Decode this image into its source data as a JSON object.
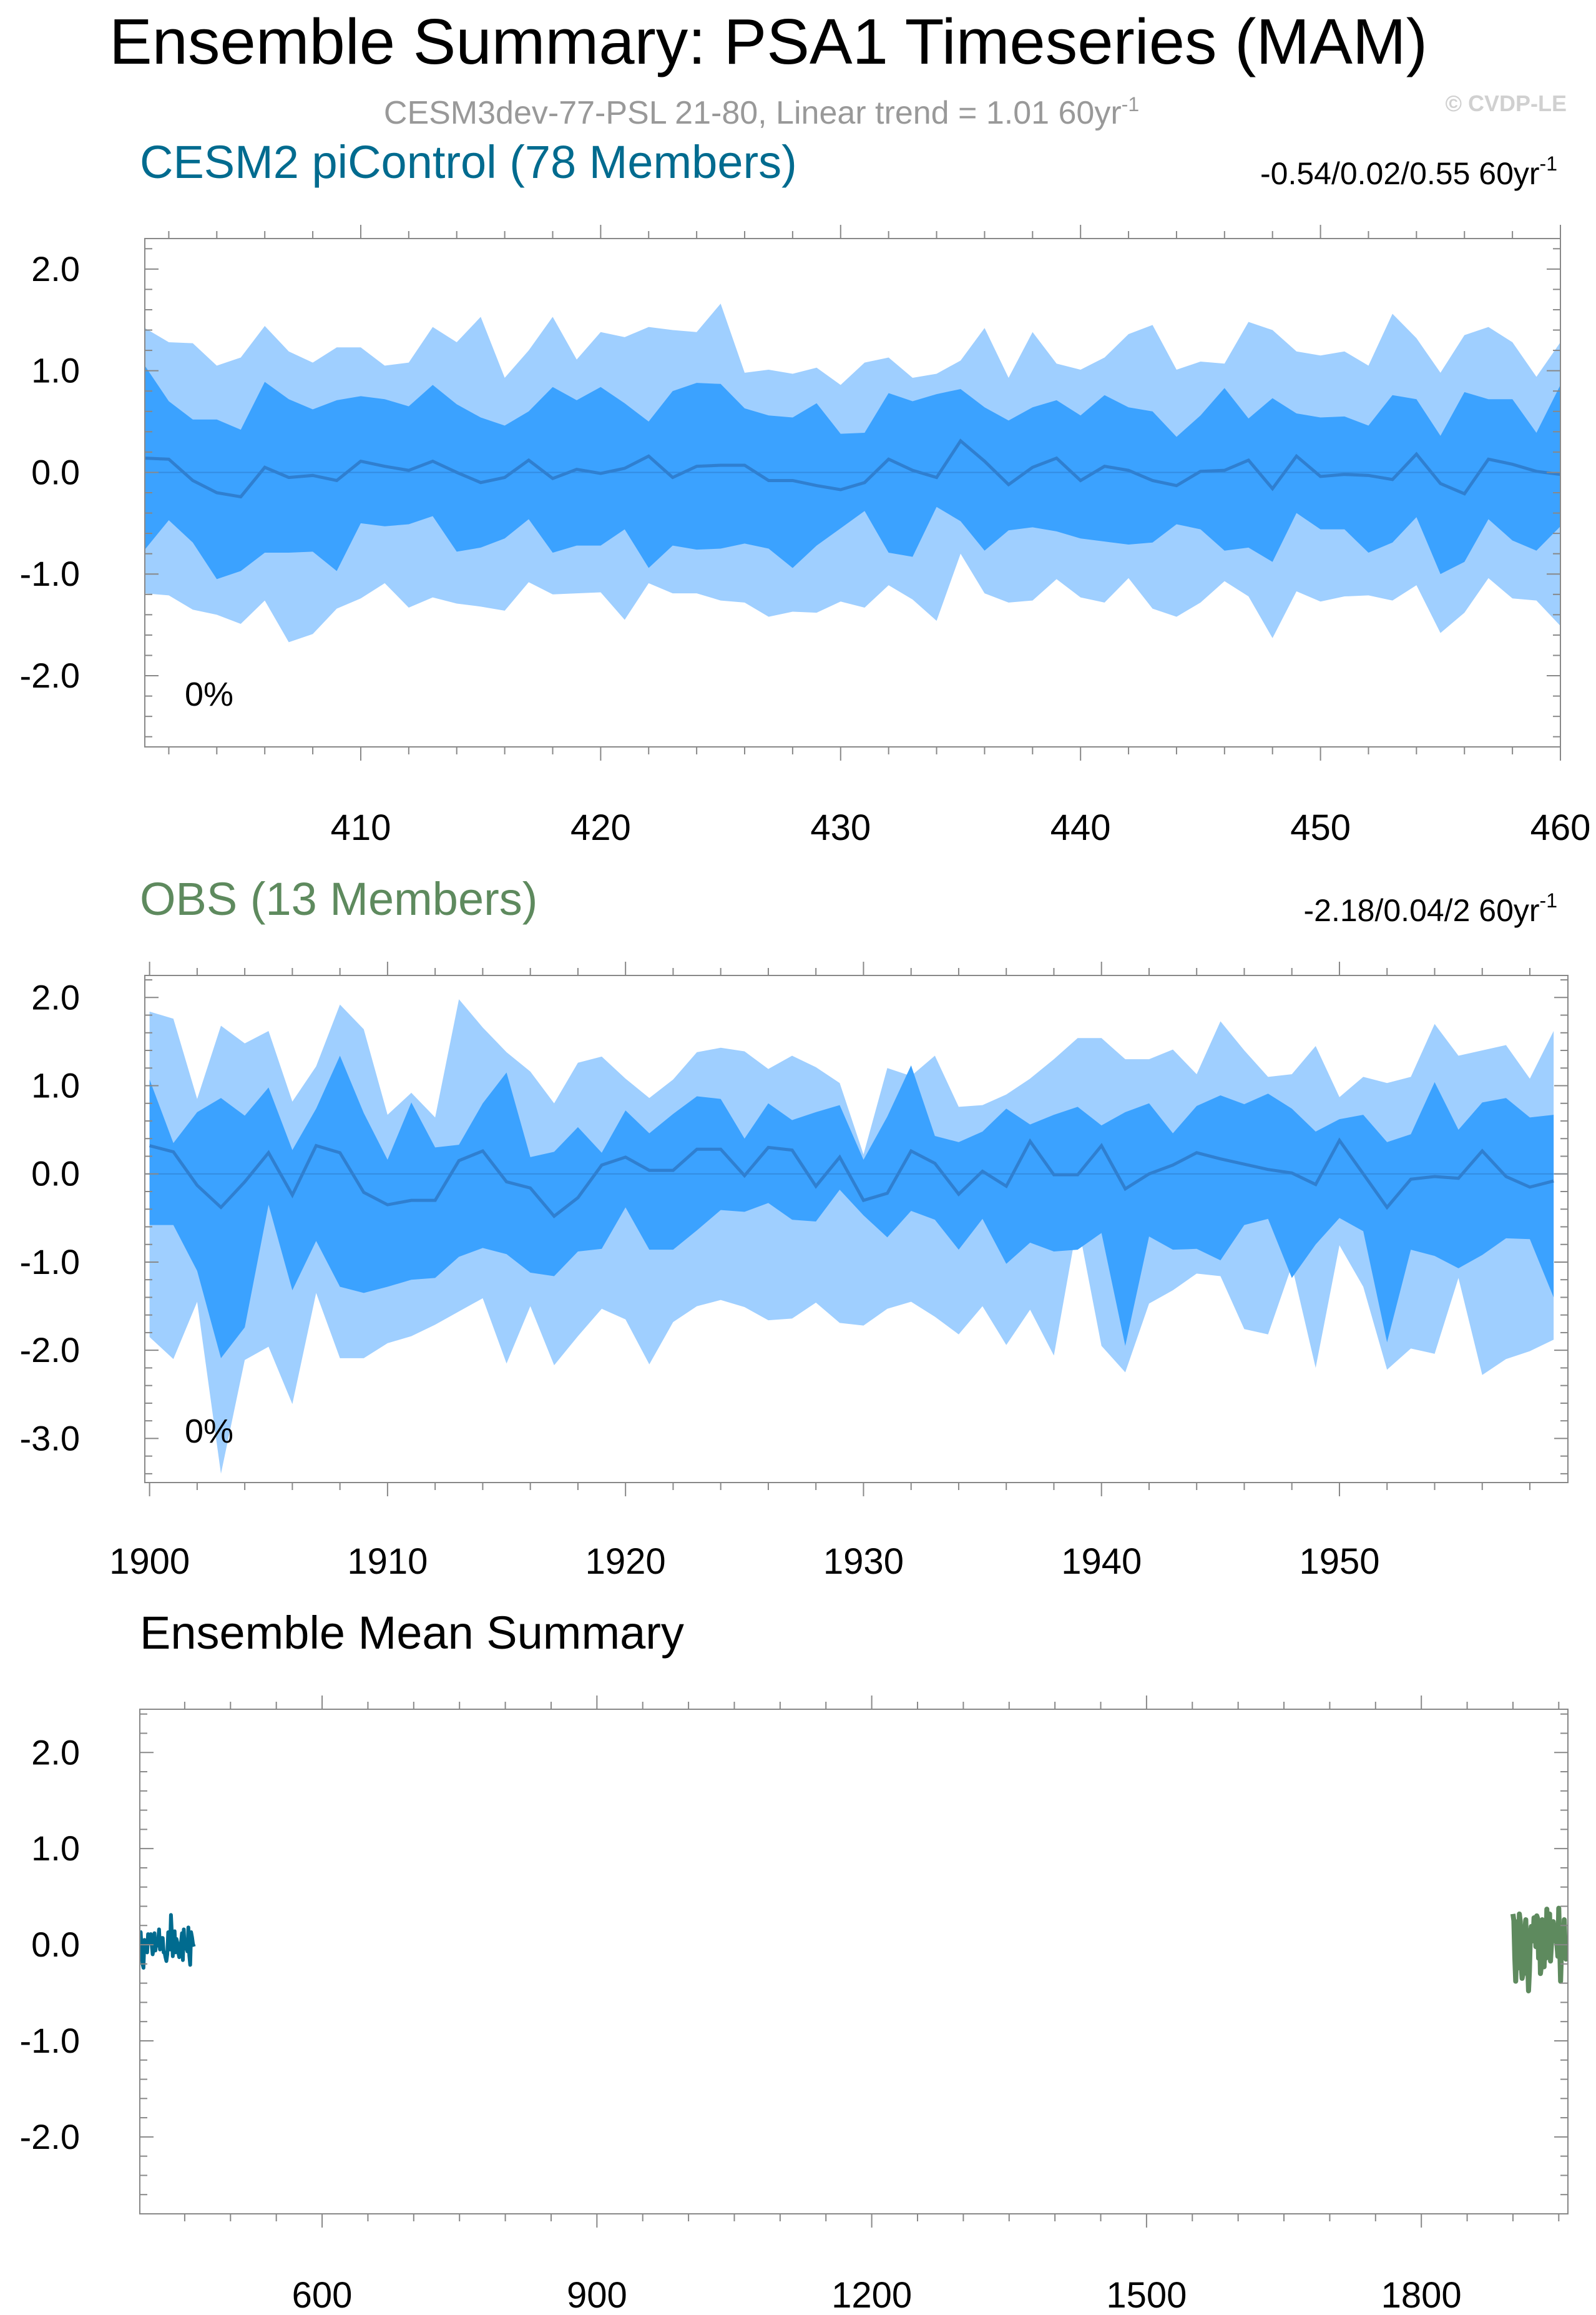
{
  "title": "Ensemble Summary: PSA1 Timeseries (MAM)",
  "subtitle": {
    "text": "CESM3dev-77-PSL 21-80, Linear trend = 1.01 60yr",
    "exp": "-1"
  },
  "watermark": "© CVDP-LE",
  "colors": {
    "outer_band": "#9fcfff",
    "inner_band": "#3ba2ff",
    "mean_line": "#2f7fd0",
    "cesm_title": "#006b8f",
    "obs_title": "#5e8a5e",
    "subtitle": "#999999",
    "watermark": "#d0d0d0"
  },
  "chart_data": [
    {
      "id": "cesm2",
      "type": "area",
      "title": "CESM2 piControl (78 Members)",
      "trend": {
        "text": "-0.54/0.02/0.55 60yr",
        "exp": "-1"
      },
      "pct_label": "0%",
      "xlim": [
        401,
        460
      ],
      "ylim": [
        -2.7,
        2.3
      ],
      "xticks": [
        410,
        420,
        430,
        440,
        450,
        460
      ],
      "xtick_labels": [
        "410",
        "420",
        "430",
        "440",
        "450",
        "460"
      ],
      "yticks": [
        2.0,
        1.0,
        0.0,
        -1.0,
        -2.0
      ],
      "ytick_labels": [
        "2.0",
        "1.0",
        "0.0",
        "-1.0",
        "-2.0"
      ],
      "x_start": 401,
      "max": [
        1.42,
        1.28,
        1.27,
        1.05,
        1.13,
        1.44,
        1.19,
        1.08,
        1.23,
        1.23,
        1.05,
        1.08,
        1.43,
        1.28,
        1.53,
        0.93,
        1.2,
        1.53,
        1.11,
        1.38,
        1.33,
        1.43,
        1.4,
        1.38,
        1.66,
        0.98,
        1.01,
        0.97,
        1.03,
        0.86,
        1.08,
        1.13,
        0.93,
        0.97,
        1.1,
        1.42,
        0.93,
        1.38,
        1.07,
        1.01,
        1.13,
        1.36,
        1.45,
        1.01,
        1.09,
        1.07,
        1.48,
        1.4,
        1.19,
        1.15,
        1.19,
        1.05,
        1.56,
        1.32,
        0.98,
        1.35,
        1.43,
        1.28,
        0.94,
        1.28
      ],
      "p84": [
        1.05,
        0.7,
        0.52,
        0.52,
        0.42,
        0.89,
        0.72,
        0.62,
        0.71,
        0.75,
        0.72,
        0.65,
        0.86,
        0.67,
        0.54,
        0.46,
        0.6,
        0.84,
        0.71,
        0.84,
        0.68,
        0.5,
        0.8,
        0.88,
        0.87,
        0.63,
        0.56,
        0.54,
        0.68,
        0.38,
        0.39,
        0.78,
        0.7,
        0.77,
        0.82,
        0.64,
        0.51,
        0.64,
        0.71,
        0.56,
        0.76,
        0.64,
        0.6,
        0.35,
        0.56,
        0.83,
        0.53,
        0.73,
        0.58,
        0.54,
        0.55,
        0.46,
        0.76,
        0.72,
        0.36,
        0.79,
        0.72,
        0.72,
        0.39,
        0.86
      ],
      "mean": [
        0.14,
        0.13,
        -0.08,
        -0.2,
        -0.24,
        0.05,
        -0.05,
        -0.03,
        -0.08,
        0.11,
        0.06,
        0.02,
        0.11,
        0.0,
        -0.1,
        -0.05,
        0.12,
        -0.06,
        0.03,
        -0.01,
        0.04,
        0.16,
        -0.05,
        0.06,
        0.07,
        0.07,
        -0.08,
        -0.08,
        -0.13,
        -0.17,
        -0.1,
        0.13,
        0.02,
        -0.05,
        0.31,
        0.11,
        -0.12,
        0.05,
        0.14,
        -0.08,
        0.06,
        0.02,
        -0.08,
        -0.13,
        0.01,
        0.02,
        0.12,
        -0.16,
        0.16,
        -0.04,
        -0.02,
        -0.03,
        -0.07,
        0.18,
        -0.11,
        -0.21,
        0.13,
        0.08,
        0.01,
        -0.02
      ],
      "p16": [
        -0.76,
        -0.47,
        -0.69,
        -1.05,
        -0.97,
        -0.79,
        -0.79,
        -0.78,
        -0.97,
        -0.5,
        -0.53,
        -0.51,
        -0.43,
        -0.78,
        -0.74,
        -0.65,
        -0.46,
        -0.79,
        -0.72,
        -0.72,
        -0.56,
        -0.94,
        -0.72,
        -0.76,
        -0.75,
        -0.7,
        -0.75,
        -0.94,
        -0.72,
        -0.55,
        -0.38,
        -0.79,
        -0.83,
        -0.34,
        -0.48,
        -0.77,
        -0.57,
        -0.54,
        -0.58,
        -0.65,
        -0.68,
        -0.71,
        -0.69,
        -0.51,
        -0.56,
        -0.77,
        -0.74,
        -0.88,
        -0.4,
        -0.56,
        -0.56,
        -0.79,
        -0.69,
        -0.44,
        -1.0,
        -0.88,
        -0.46,
        -0.67,
        -0.77,
        -0.53
      ],
      "min": [
        -1.19,
        -1.21,
        -1.35,
        -1.4,
        -1.49,
        -1.26,
        -1.67,
        -1.59,
        -1.34,
        -1.24,
        -1.09,
        -1.33,
        -1.23,
        -1.29,
        -1.32,
        -1.36,
        -1.08,
        -1.2,
        -1.19,
        -1.18,
        -1.45,
        -1.09,
        -1.19,
        -1.19,
        -1.26,
        -1.28,
        -1.42,
        -1.37,
        -1.38,
        -1.27,
        -1.33,
        -1.11,
        -1.25,
        -1.46,
        -0.8,
        -1.19,
        -1.28,
        -1.26,
        -1.05,
        -1.23,
        -1.28,
        -1.04,
        -1.34,
        -1.42,
        -1.28,
        -1.07,
        -1.22,
        -1.63,
        -1.17,
        -1.27,
        -1.22,
        -1.21,
        -1.26,
        -1.11,
        -1.58,
        -1.38,
        -1.04,
        -1.24,
        -1.26,
        -1.51
      ]
    },
    {
      "id": "obs",
      "type": "area",
      "title": "OBS (13 Members)",
      "trend": {
        "text": "-2.18/0.04/2 60yr",
        "exp": "-1"
      },
      "pct_label": "0%",
      "xlim": [
        1899.8,
        1959.6
      ],
      "ylim": [
        -3.5,
        2.25
      ],
      "xticks": [
        1900,
        1910,
        1920,
        1930,
        1940,
        1950
      ],
      "xtick_labels": [
        "1900",
        "1910",
        "1920",
        "1930",
        "1940",
        "1950"
      ],
      "yticks": [
        2.0,
        1.0,
        0.0,
        -1.0,
        -2.0,
        -3.0
      ],
      "ytick_labels": [
        "2.0",
        "1.0",
        "0.0",
        "-1.0",
        "-2.0",
        "-3.0"
      ],
      "x_start": 1900,
      "max": [
        1.84,
        1.76,
        0.85,
        1.68,
        1.48,
        1.62,
        0.82,
        1.22,
        1.92,
        1.64,
        0.67,
        0.92,
        0.64,
        1.98,
        1.66,
        1.38,
        1.16,
        0.8,
        1.26,
        1.33,
        1.08,
        0.86,
        1.07,
        1.38,
        1.43,
        1.39,
        1.19,
        1.34,
        1.21,
        1.03,
        0.22,
        1.2,
        1.11,
        1.34,
        0.76,
        0.78,
        0.9,
        1.08,
        1.3,
        1.54,
        1.54,
        1.3,
        1.3,
        1.41,
        1.13,
        1.73,
        1.4,
        1.1,
        1.13,
        1.45,
        0.87,
        1.1,
        1.03,
        1.1,
        1.7,
        1.34,
        1.4,
        1.46,
        1.08,
        1.62
      ],
      "p84": [
        1.07,
        0.35,
        0.7,
        0.86,
        0.66,
        0.98,
        0.27,
        0.74,
        1.34,
        0.69,
        0.16,
        0.81,
        0.3,
        0.33,
        0.8,
        1.15,
        0.19,
        0.25,
        0.53,
        0.24,
        0.72,
        0.46,
        0.68,
        0.88,
        0.85,
        0.4,
        0.8,
        0.61,
        0.7,
        0.78,
        0.16,
        0.65,
        1.23,
        0.43,
        0.36,
        0.48,
        0.74,
        0.56,
        0.67,
        0.76,
        0.55,
        0.7,
        0.8,
        0.46,
        0.77,
        0.89,
        0.79,
        0.91,
        0.74,
        0.48,
        0.62,
        0.67,
        0.36,
        0.45,
        1.04,
        0.5,
        0.81,
        0.86,
        0.64,
        0.67
      ],
      "mean": [
        0.32,
        0.25,
        -0.13,
        -0.38,
        -0.09,
        0.24,
        -0.24,
        0.32,
        0.24,
        -0.21,
        -0.35,
        -0.3,
        -0.3,
        0.15,
        0.26,
        -0.09,
        -0.16,
        -0.48,
        -0.27,
        0.1,
        0.19,
        0.04,
        0.04,
        0.28,
        0.28,
        -0.02,
        0.3,
        0.27,
        -0.14,
        0.19,
        -0.3,
        -0.22,
        0.26,
        0.12,
        -0.23,
        0.03,
        -0.14,
        0.37,
        -0.01,
        -0.01,
        0.32,
        -0.17,
        0.0,
        0.1,
        0.24,
        0.17,
        0.11,
        0.05,
        0.01,
        -0.12,
        0.38,
        0.0,
        -0.38,
        -0.06,
        -0.03,
        -0.05,
        0.26,
        -0.03,
        -0.15,
        -0.08
      ],
      "p16": [
        -0.58,
        -0.58,
        -1.1,
        -2.09,
        -1.74,
        -0.35,
        -1.32,
        -0.76,
        -1.28,
        -1.35,
        -1.28,
        -1.2,
        -1.18,
        -0.94,
        -0.84,
        -0.91,
        -1.12,
        -1.16,
        -0.88,
        -0.85,
        -0.38,
        -0.86,
        -0.86,
        -0.64,
        -0.41,
        -0.43,
        -0.33,
        -0.52,
        -0.54,
        -0.18,
        -0.47,
        -0.72,
        -0.42,
        -0.52,
        -0.86,
        -0.51,
        -1.02,
        -0.78,
        -0.88,
        -0.86,
        -0.67,
        -1.95,
        -0.71,
        -0.86,
        -0.85,
        -0.98,
        -0.58,
        -0.51,
        -1.18,
        -0.8,
        -0.5,
        -0.65,
        -1.91,
        -0.86,
        -0.93,
        -1.07,
        -0.92,
        -0.73,
        -0.74,
        -1.4
      ],
      "min": [
        -1.85,
        -2.1,
        -1.45,
        -3.4,
        -2.11,
        -1.96,
        -2.61,
        -1.35,
        -2.09,
        -2.09,
        -1.92,
        -1.84,
        -1.71,
        -1.56,
        -1.41,
        -2.15,
        -1.5,
        -2.17,
        -1.84,
        -1.53,
        -1.65,
        -2.16,
        -1.68,
        -1.5,
        -1.43,
        -1.51,
        -1.66,
        -1.64,
        -1.46,
        -1.69,
        -1.72,
        -1.53,
        -1.45,
        -1.62,
        -1.82,
        -1.5,
        -1.94,
        -1.54,
        -2.06,
        -0.55,
        -1.95,
        -2.25,
        -1.47,
        -1.32,
        -1.13,
        -1.16,
        -1.76,
        -1.82,
        -1.04,
        -2.2,
        -0.81,
        -1.28,
        -2.22,
        -1.98,
        -2.04,
        -1.18,
        -2.28,
        -2.1,
        -2.01,
        -1.88
      ]
    },
    {
      "id": "summary",
      "type": "line",
      "title": "Ensemble Mean Summary",
      "xlim": [
        401,
        1960
      ],
      "ylim": [
        -2.8,
        2.45
      ],
      "xticks": [
        600,
        900,
        1200,
        1500,
        1800
      ],
      "xtick_labels": [
        "600",
        "900",
        "1200",
        "1500",
        "1800"
      ],
      "yticks": [
        2.0,
        1.0,
        0.0,
        -1.0,
        -2.0
      ],
      "ytick_labels": [
        "2.0",
        "1.0",
        "0.0",
        "-1.0",
        "-2.0"
      ],
      "series": [
        {
          "name": "CESM2 piControl",
          "color": "#006b8f",
          "source": "cesm2.mean",
          "x_start": 401
        },
        {
          "name": "OBS",
          "color": "#5e8a5e",
          "source": "obs.mean",
          "x_start": 1900,
          "members": 13
        }
      ]
    }
  ]
}
